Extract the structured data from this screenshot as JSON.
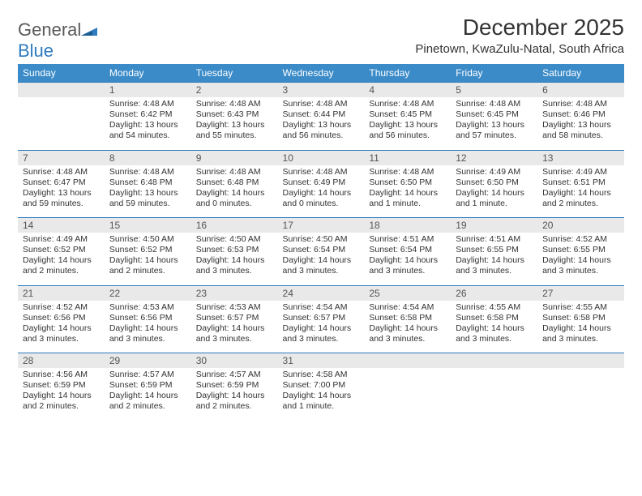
{
  "brand": {
    "word1": "General",
    "word2": "Blue"
  },
  "title": "December 2025",
  "subtitle": "Pinetown, KwaZulu-Natal, South Africa",
  "style": {
    "header_bg": "#3b8bc8",
    "header_fg": "#ffffff",
    "daynum_bg": "#e9e9e9",
    "daynum_border": "#2e7bbf",
    "title_fontsize": 28,
    "subtitle_fontsize": 15,
    "cell_fontsize": 10.5,
    "page_bg": "#ffffff",
    "text_color": "#333333"
  },
  "day_headers": [
    "Sunday",
    "Monday",
    "Tuesday",
    "Wednesday",
    "Thursday",
    "Friday",
    "Saturday"
  ],
  "weeks": [
    [
      {
        "num": "",
        "sun1": "",
        "sun2": "",
        "sun3": "",
        "sun4": ""
      },
      {
        "num": "1",
        "sun1": "Sunrise: 4:48 AM",
        "sun2": "Sunset: 6:42 PM",
        "sun3": "Daylight: 13 hours",
        "sun4": "and 54 minutes."
      },
      {
        "num": "2",
        "sun1": "Sunrise: 4:48 AM",
        "sun2": "Sunset: 6:43 PM",
        "sun3": "Daylight: 13 hours",
        "sun4": "and 55 minutes."
      },
      {
        "num": "3",
        "sun1": "Sunrise: 4:48 AM",
        "sun2": "Sunset: 6:44 PM",
        "sun3": "Daylight: 13 hours",
        "sun4": "and 56 minutes."
      },
      {
        "num": "4",
        "sun1": "Sunrise: 4:48 AM",
        "sun2": "Sunset: 6:45 PM",
        "sun3": "Daylight: 13 hours",
        "sun4": "and 56 minutes."
      },
      {
        "num": "5",
        "sun1": "Sunrise: 4:48 AM",
        "sun2": "Sunset: 6:45 PM",
        "sun3": "Daylight: 13 hours",
        "sun4": "and 57 minutes."
      },
      {
        "num": "6",
        "sun1": "Sunrise: 4:48 AM",
        "sun2": "Sunset: 6:46 PM",
        "sun3": "Daylight: 13 hours",
        "sun4": "and 58 minutes."
      }
    ],
    [
      {
        "num": "7",
        "sun1": "Sunrise: 4:48 AM",
        "sun2": "Sunset: 6:47 PM",
        "sun3": "Daylight: 13 hours",
        "sun4": "and 59 minutes."
      },
      {
        "num": "8",
        "sun1": "Sunrise: 4:48 AM",
        "sun2": "Sunset: 6:48 PM",
        "sun3": "Daylight: 13 hours",
        "sun4": "and 59 minutes."
      },
      {
        "num": "9",
        "sun1": "Sunrise: 4:48 AM",
        "sun2": "Sunset: 6:48 PM",
        "sun3": "Daylight: 14 hours",
        "sun4": "and 0 minutes."
      },
      {
        "num": "10",
        "sun1": "Sunrise: 4:48 AM",
        "sun2": "Sunset: 6:49 PM",
        "sun3": "Daylight: 14 hours",
        "sun4": "and 0 minutes."
      },
      {
        "num": "11",
        "sun1": "Sunrise: 4:48 AM",
        "sun2": "Sunset: 6:50 PM",
        "sun3": "Daylight: 14 hours",
        "sun4": "and 1 minute."
      },
      {
        "num": "12",
        "sun1": "Sunrise: 4:49 AM",
        "sun2": "Sunset: 6:50 PM",
        "sun3": "Daylight: 14 hours",
        "sun4": "and 1 minute."
      },
      {
        "num": "13",
        "sun1": "Sunrise: 4:49 AM",
        "sun2": "Sunset: 6:51 PM",
        "sun3": "Daylight: 14 hours",
        "sun4": "and 2 minutes."
      }
    ],
    [
      {
        "num": "14",
        "sun1": "Sunrise: 4:49 AM",
        "sun2": "Sunset: 6:52 PM",
        "sun3": "Daylight: 14 hours",
        "sun4": "and 2 minutes."
      },
      {
        "num": "15",
        "sun1": "Sunrise: 4:50 AM",
        "sun2": "Sunset: 6:52 PM",
        "sun3": "Daylight: 14 hours",
        "sun4": "and 2 minutes."
      },
      {
        "num": "16",
        "sun1": "Sunrise: 4:50 AM",
        "sun2": "Sunset: 6:53 PM",
        "sun3": "Daylight: 14 hours",
        "sun4": "and 3 minutes."
      },
      {
        "num": "17",
        "sun1": "Sunrise: 4:50 AM",
        "sun2": "Sunset: 6:54 PM",
        "sun3": "Daylight: 14 hours",
        "sun4": "and 3 minutes."
      },
      {
        "num": "18",
        "sun1": "Sunrise: 4:51 AM",
        "sun2": "Sunset: 6:54 PM",
        "sun3": "Daylight: 14 hours",
        "sun4": "and 3 minutes."
      },
      {
        "num": "19",
        "sun1": "Sunrise: 4:51 AM",
        "sun2": "Sunset: 6:55 PM",
        "sun3": "Daylight: 14 hours",
        "sun4": "and 3 minutes."
      },
      {
        "num": "20",
        "sun1": "Sunrise: 4:52 AM",
        "sun2": "Sunset: 6:55 PM",
        "sun3": "Daylight: 14 hours",
        "sun4": "and 3 minutes."
      }
    ],
    [
      {
        "num": "21",
        "sun1": "Sunrise: 4:52 AM",
        "sun2": "Sunset: 6:56 PM",
        "sun3": "Daylight: 14 hours",
        "sun4": "and 3 minutes."
      },
      {
        "num": "22",
        "sun1": "Sunrise: 4:53 AM",
        "sun2": "Sunset: 6:56 PM",
        "sun3": "Daylight: 14 hours",
        "sun4": "and 3 minutes."
      },
      {
        "num": "23",
        "sun1": "Sunrise: 4:53 AM",
        "sun2": "Sunset: 6:57 PM",
        "sun3": "Daylight: 14 hours",
        "sun4": "and 3 minutes."
      },
      {
        "num": "24",
        "sun1": "Sunrise: 4:54 AM",
        "sun2": "Sunset: 6:57 PM",
        "sun3": "Daylight: 14 hours",
        "sun4": "and 3 minutes."
      },
      {
        "num": "25",
        "sun1": "Sunrise: 4:54 AM",
        "sun2": "Sunset: 6:58 PM",
        "sun3": "Daylight: 14 hours",
        "sun4": "and 3 minutes."
      },
      {
        "num": "26",
        "sun1": "Sunrise: 4:55 AM",
        "sun2": "Sunset: 6:58 PM",
        "sun3": "Daylight: 14 hours",
        "sun4": "and 3 minutes."
      },
      {
        "num": "27",
        "sun1": "Sunrise: 4:55 AM",
        "sun2": "Sunset: 6:58 PM",
        "sun3": "Daylight: 14 hours",
        "sun4": "and 3 minutes."
      }
    ],
    [
      {
        "num": "28",
        "sun1": "Sunrise: 4:56 AM",
        "sun2": "Sunset: 6:59 PM",
        "sun3": "Daylight: 14 hours",
        "sun4": "and 2 minutes."
      },
      {
        "num": "29",
        "sun1": "Sunrise: 4:57 AM",
        "sun2": "Sunset: 6:59 PM",
        "sun3": "Daylight: 14 hours",
        "sun4": "and 2 minutes."
      },
      {
        "num": "30",
        "sun1": "Sunrise: 4:57 AM",
        "sun2": "Sunset: 6:59 PM",
        "sun3": "Daylight: 14 hours",
        "sun4": "and 2 minutes."
      },
      {
        "num": "31",
        "sun1": "Sunrise: 4:58 AM",
        "sun2": "Sunset: 7:00 PM",
        "sun3": "Daylight: 14 hours",
        "sun4": "and 1 minute."
      },
      {
        "num": "",
        "sun1": "",
        "sun2": "",
        "sun3": "",
        "sun4": ""
      },
      {
        "num": "",
        "sun1": "",
        "sun2": "",
        "sun3": "",
        "sun4": ""
      },
      {
        "num": "",
        "sun1": "",
        "sun2": "",
        "sun3": "",
        "sun4": ""
      }
    ]
  ]
}
